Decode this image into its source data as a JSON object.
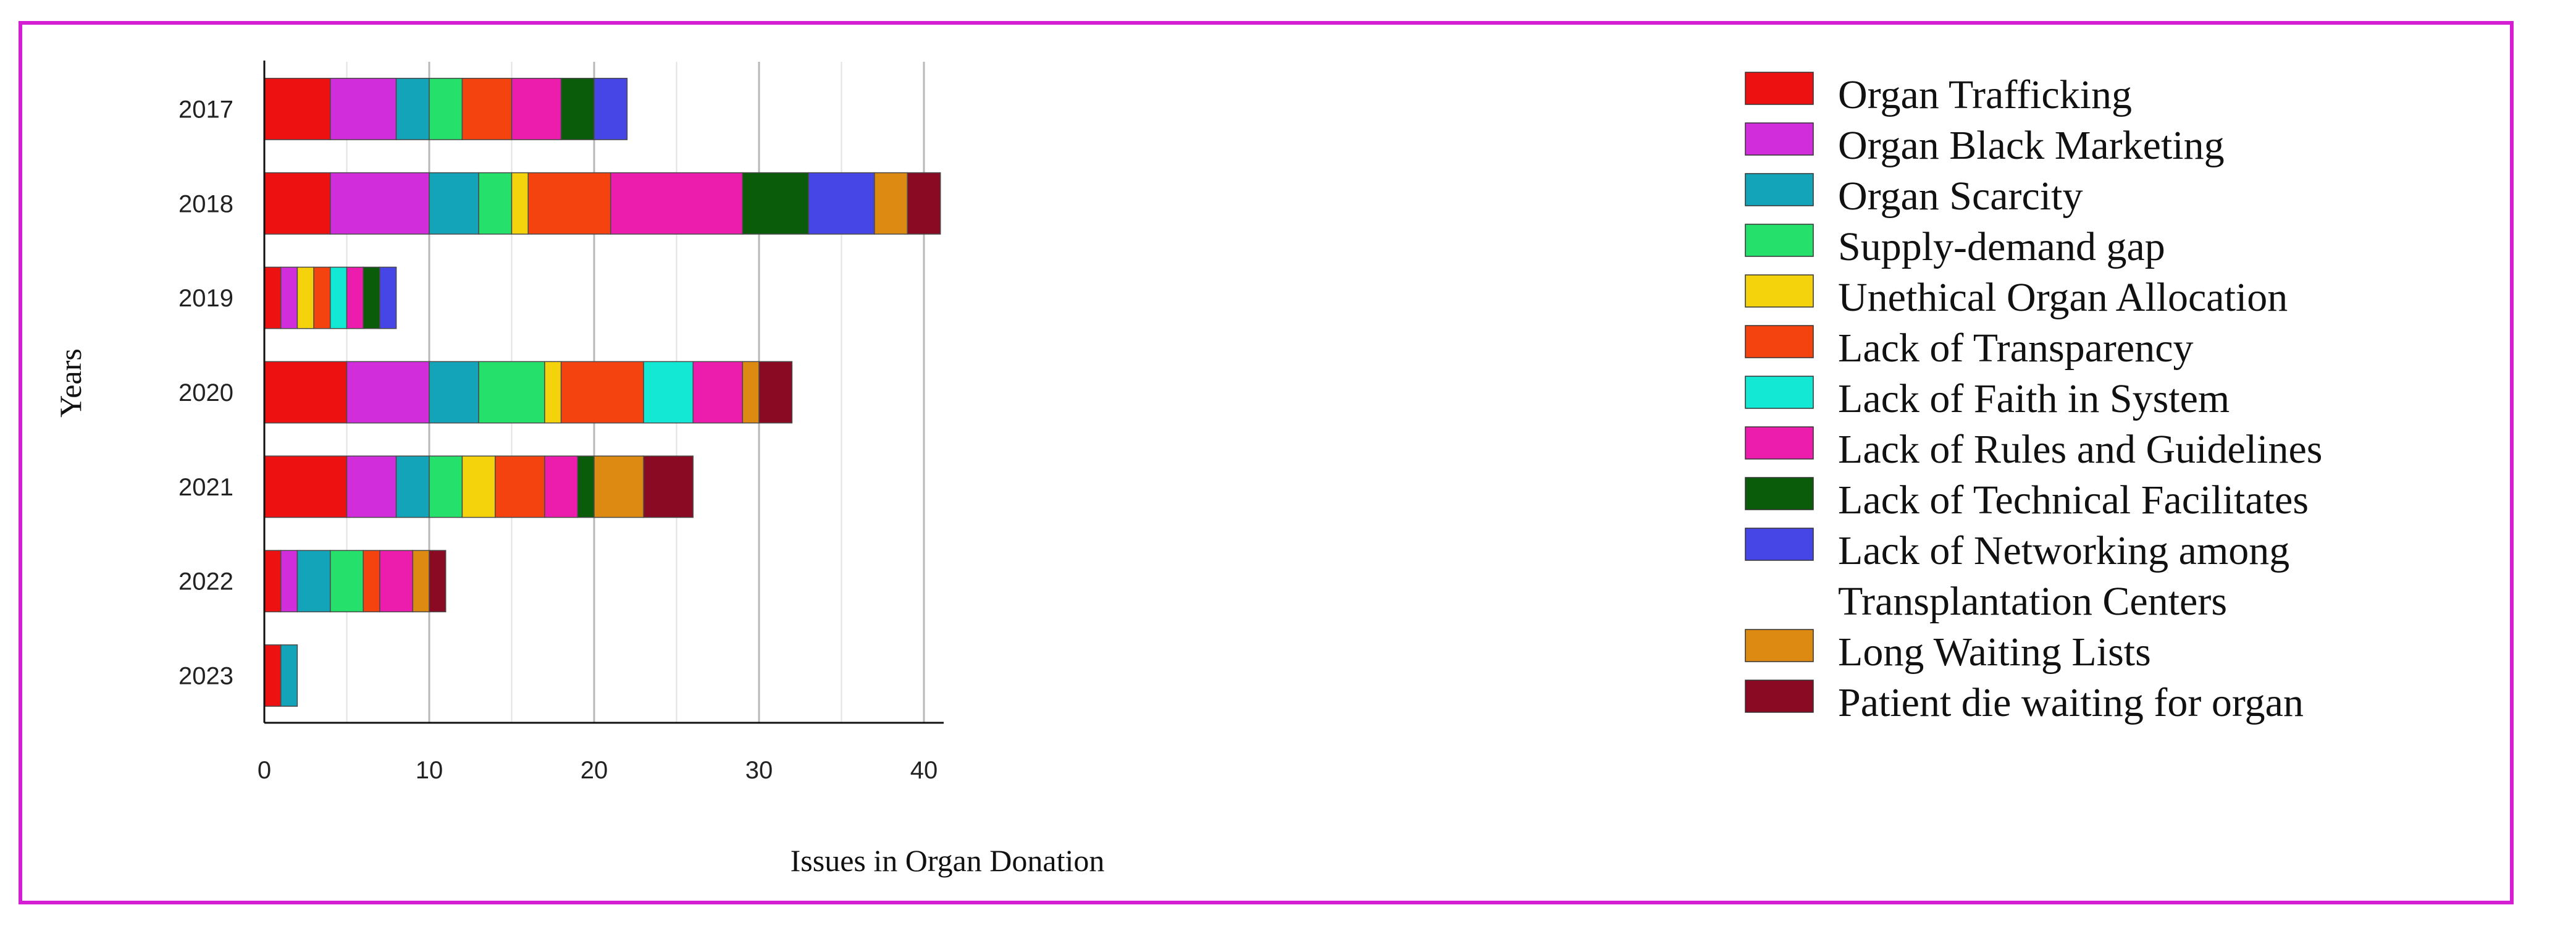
{
  "chart_data": {
    "type": "bar",
    "orientation": "horizontal",
    "stacked": true,
    "title": "",
    "xlabel": "Issues in Organ Donation",
    "ylabel": "Years",
    "xlim": [
      0,
      40
    ],
    "xticks": [
      0,
      10,
      20,
      30,
      40
    ],
    "grid": true,
    "legend_position": "right",
    "categories": [
      "2017",
      "2018",
      "2019",
      "2020",
      "2021",
      "2022",
      "2023"
    ],
    "series": [
      {
        "name": "Organ Trafficking",
        "color": "#ee1111",
        "values": [
          4,
          4,
          1,
          5,
          5,
          1,
          1
        ]
      },
      {
        "name": "Organ Black Marketing",
        "color": "#d12ddb",
        "values": [
          4,
          6,
          1,
          5,
          3,
          1,
          0
        ]
      },
      {
        "name": "Organ Scarcity",
        "color": "#13a4b9",
        "values": [
          2,
          3,
          0,
          3,
          2,
          2,
          1
        ]
      },
      {
        "name": "Supply-demand gap",
        "color": "#25e06a",
        "values": [
          2,
          2,
          0,
          4,
          2,
          2,
          0
        ]
      },
      {
        "name": "Unethical Organ Allocation",
        "color": "#f4d20c",
        "values": [
          0,
          1,
          1,
          1,
          2,
          0,
          0
        ]
      },
      {
        "name": "Lack of Transparency",
        "color": "#f54310",
        "values": [
          3,
          5,
          1,
          5,
          3,
          1,
          0
        ]
      },
      {
        "name": "Lack of Faith in System",
        "color": "#12e8d4",
        "values": [
          0,
          0,
          1,
          3,
          0,
          0,
          0
        ]
      },
      {
        "name": "Lack of Rules and Guidelines",
        "color": "#ec1cad",
        "values": [
          3,
          8,
          1,
          3,
          2,
          2,
          0
        ]
      },
      {
        "name": "Lack of Technical Facilitates",
        "color": "#0a5b0a",
        "values": [
          2,
          4,
          1,
          0,
          1,
          0,
          0
        ]
      },
      {
        "name": "Lack of Networking among Transplantation Centers",
        "color": "#4646e6",
        "values": [
          2,
          4,
          1,
          0,
          0,
          0,
          0
        ]
      },
      {
        "name": "Long Waiting Lists",
        "color": "#dc8a11",
        "values": [
          0,
          2,
          0,
          1,
          3,
          1,
          0
        ]
      },
      {
        "name": "Patient die waiting for organ",
        "color": "#8b0a23",
        "values": [
          0,
          2,
          0,
          2,
          3,
          1,
          0
        ]
      }
    ]
  }
}
